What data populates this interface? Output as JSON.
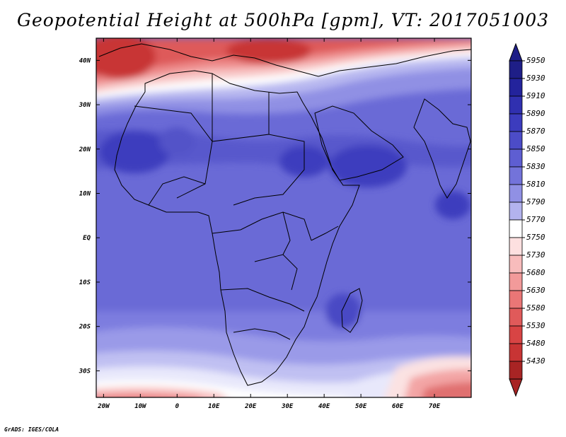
{
  "title": "Geopotential Height at 500hPa [gpm], VT: 2017051003",
  "credit": "GrADS: IGES/COLA",
  "map": {
    "lat_labels": [
      "40N",
      "30N",
      "20N",
      "10N",
      "EQ",
      "10S",
      "20S",
      "30S"
    ],
    "lat_values": [
      40,
      30,
      20,
      10,
      0,
      -10,
      -20,
      -30
    ],
    "lon_labels": [
      "20W",
      "10W",
      "0",
      "10E",
      "20E",
      "30E",
      "40E",
      "50E",
      "60E",
      "70E"
    ],
    "lon_values": [
      -20,
      -10,
      0,
      10,
      20,
      30,
      40,
      50,
      60,
      70
    ],
    "lon_range": [
      -22,
      80
    ],
    "lat_range": [
      -36,
      45
    ]
  },
  "colorbar": {
    "labels": [
      "5950",
      "5930",
      "5910",
      "5890",
      "5870",
      "5850",
      "5830",
      "5810",
      "5790",
      "5770",
      "5750",
      "5730",
      "5680",
      "5630",
      "5580",
      "5530",
      "5480",
      "5430"
    ],
    "colors": [
      "#1e1e87",
      "#23239c",
      "#3030b0",
      "#3c3cbe",
      "#4c4cc8",
      "#5e5ed2",
      "#7373da",
      "#9090e4",
      "#b3b3ee",
      "#ffffff",
      "#fde0e0",
      "#f8bcbc",
      "#f29a9a",
      "#ea7676",
      "#e05a5a",
      "#d84444",
      "#c83434",
      "#a82424"
    ]
  }
}
